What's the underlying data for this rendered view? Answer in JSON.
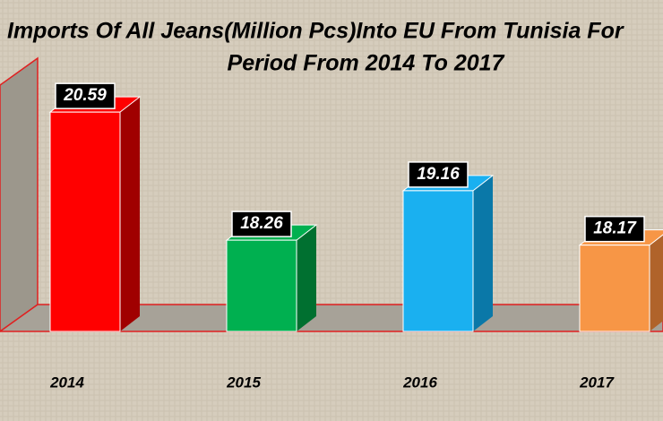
{
  "chart_data": {
    "type": "bar3d",
    "title": [
      "Imports Of All Jeans(Million Pcs)Into EU From Tunisia For",
      "Period From 2014 To 2017"
    ],
    "categories": [
      "2014",
      "2015",
      "2016",
      "2017"
    ],
    "values": [
      20.59,
      18.26,
      19.16,
      18.17
    ],
    "colors": [
      "#ff0000",
      "#00b050",
      "#1ab0f0",
      "#f79646"
    ],
    "side_colors": [
      "#a00000",
      "#007030",
      "#0a78a8",
      "#b0632a"
    ],
    "ylim": [
      16.6,
      21
    ]
  }
}
